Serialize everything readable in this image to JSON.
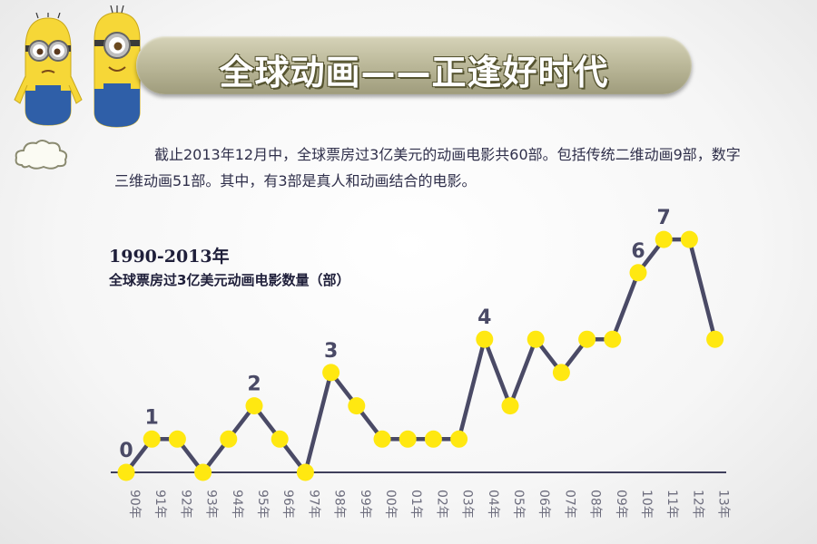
{
  "header": {
    "title": "全球动画——正逢好时代"
  },
  "intro": {
    "text": "截止2013年12月中，全球票房过3亿美元的动画电影共60部。包括传统二维动画9部，数字三维动画51部。其中，有3部是真人和动画结合的电影。"
  },
  "colors": {
    "line": "#4a4a66",
    "point": "#ffe811",
    "baseline": "#3f3f5c",
    "label": "#4a4a66",
    "tick": "#6e6e7e"
  },
  "icons": [
    "minion-one-eye-icon",
    "minion-two-eyes-icon",
    "cloud-icon"
  ],
  "chart_data": {
    "type": "line",
    "title": "1990-2013年",
    "subtitle": "全球票房过3亿美元动画电影数量（部）",
    "categories": [
      "90年",
      "91年",
      "92年",
      "93年",
      "94年",
      "95年",
      "96年",
      "97年",
      "98年",
      "99年",
      "00年",
      "01年",
      "02年",
      "03年",
      "04年",
      "05年",
      "06年",
      "07年",
      "08年",
      "09年",
      "10年",
      "11年",
      "12年",
      "13年"
    ],
    "values": [
      0,
      1,
      1,
      0,
      1,
      2,
      1,
      0,
      3,
      2,
      1,
      1,
      1,
      1,
      4,
      2,
      4,
      3,
      4,
      4,
      6,
      7,
      7,
      4
    ],
    "data_labels": [
      {
        "index": 0,
        "text": "0"
      },
      {
        "index": 1,
        "text": "1"
      },
      {
        "index": 5,
        "text": "2"
      },
      {
        "index": 8,
        "text": "3"
      },
      {
        "index": 14,
        "text": "4"
      },
      {
        "index": 20,
        "text": "6"
      },
      {
        "index": 21,
        "text": "7"
      }
    ],
    "ylim": [
      0,
      7
    ],
    "grid": false,
    "legend": "none"
  }
}
